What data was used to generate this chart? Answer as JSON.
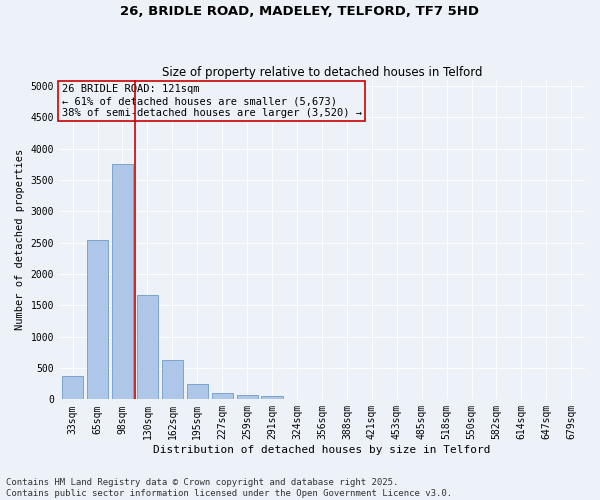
{
  "title": "26, BRIDLE ROAD, MADELEY, TELFORD, TF7 5HD",
  "subtitle": "Size of property relative to detached houses in Telford",
  "xlabel": "Distribution of detached houses by size in Telford",
  "ylabel": "Number of detached properties",
  "categories": [
    "33sqm",
    "65sqm",
    "98sqm",
    "130sqm",
    "162sqm",
    "195sqm",
    "227sqm",
    "259sqm",
    "291sqm",
    "324sqm",
    "356sqm",
    "388sqm",
    "421sqm",
    "453sqm",
    "485sqm",
    "518sqm",
    "550sqm",
    "582sqm",
    "614sqm",
    "647sqm",
    "679sqm"
  ],
  "values": [
    370,
    2540,
    3760,
    1660,
    620,
    240,
    105,
    65,
    55,
    0,
    0,
    0,
    0,
    0,
    0,
    0,
    0,
    0,
    0,
    0,
    0
  ],
  "bar_color": "#aec6e8",
  "bar_edge_color": "#5a8fc2",
  "vline_index": 2.5,
  "vline_color": "#cc0000",
  "annotation_text": "26 BRIDLE ROAD: 121sqm\n← 61% of detached houses are smaller (5,673)\n38% of semi-detached houses are larger (3,520) →",
  "annotation_box_color": "#cc0000",
  "annotation_fontsize": 7.5,
  "ylim": [
    0,
    5100
  ],
  "yticks": [
    0,
    500,
    1000,
    1500,
    2000,
    2500,
    3000,
    3500,
    4000,
    4500,
    5000
  ],
  "bg_color": "#edf2f8",
  "grid_color": "white",
  "footer": "Contains HM Land Registry data © Crown copyright and database right 2025.\nContains public sector information licensed under the Open Government Licence v3.0.",
  "title_fontsize": 9.5,
  "subtitle_fontsize": 8.5,
  "xlabel_fontsize": 8,
  "ylabel_fontsize": 7.5,
  "tick_fontsize": 7,
  "footer_fontsize": 6.5
}
